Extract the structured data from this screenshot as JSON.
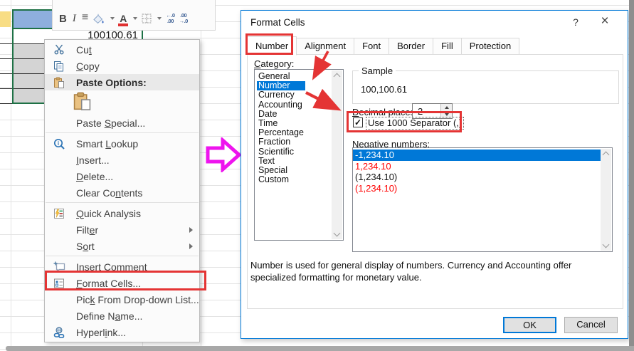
{
  "sheet": {
    "active_cell_value": "100100.61"
  },
  "toolbar": {
    "bold": "B",
    "italic": "I",
    "font_color": "A",
    "inc_top": "←.0",
    "inc_bot": ".00",
    "dec_top": ".00",
    "dec_bot": "→.0"
  },
  "context_menu": {
    "items": [
      {
        "name": "cut",
        "icon": "scissors-icon",
        "label": {
          "pre": "Cu",
          "key": "t",
          "post": ""
        }
      },
      {
        "name": "copy",
        "icon": "copy-icon",
        "label": {
          "pre": "",
          "key": "C",
          "post": "opy"
        }
      },
      {
        "name": "paste-options",
        "icon": "paste-icon",
        "bold": true,
        "highlighted": true,
        "label": {
          "pre": "Paste Options:",
          "key": "",
          "post": ""
        }
      },
      {
        "type": "paste-button",
        "name": "paste",
        "icon": "paste-large-icon"
      },
      {
        "name": "paste-special",
        "label": {
          "pre": "Paste ",
          "key": "S",
          "post": "pecial..."
        }
      },
      {
        "type": "separator"
      },
      {
        "name": "smart-lookup",
        "icon": "smart-lookup-icon",
        "label": {
          "pre": "Smart ",
          "key": "L",
          "post": "ookup"
        }
      },
      {
        "name": "insert",
        "label": {
          "pre": "",
          "key": "I",
          "post": "nsert..."
        }
      },
      {
        "name": "delete",
        "label": {
          "pre": "",
          "key": "D",
          "post": "elete..."
        }
      },
      {
        "name": "clear-contents",
        "label": {
          "pre": "Clear Co",
          "key": "n",
          "post": "tents"
        }
      },
      {
        "type": "separator"
      },
      {
        "name": "quick-analysis",
        "icon": "quick-analysis-icon",
        "label": {
          "pre": "",
          "key": "Q",
          "post": "uick Analysis"
        }
      },
      {
        "name": "filter",
        "submenu": true,
        "label": {
          "pre": "Filt",
          "key": "e",
          "post": "r"
        }
      },
      {
        "name": "sort",
        "submenu": true,
        "label": {
          "pre": "S",
          "key": "o",
          "post": "rt"
        }
      },
      {
        "type": "separator"
      },
      {
        "name": "insert-comment",
        "icon": "comment-icon",
        "label": {
          "pre": "Insert Co",
          "key": "m",
          "post": "ment"
        }
      },
      {
        "name": "format-cells",
        "icon": "format-cells-icon",
        "red_box": true,
        "label": {
          "pre": "",
          "key": "F",
          "post": "ormat Cells..."
        }
      },
      {
        "name": "pick-from-drop-down-list",
        "label": {
          "pre": "Pic",
          "key": "k",
          "post": " From Drop-down List..."
        }
      },
      {
        "name": "define-name",
        "label": {
          "pre": "Define N",
          "key": "a",
          "post": "me..."
        }
      },
      {
        "name": "hyperlink",
        "icon": "hyperlink-icon",
        "label": {
          "pre": "Hyperl",
          "key": "i",
          "post": "nk..."
        }
      }
    ]
  },
  "dialog": {
    "title": "Format Cells",
    "help_label": "?",
    "close_label": "×",
    "tabs": [
      {
        "label": "Number",
        "active": true,
        "red_box": true
      },
      {
        "label": "Alignment"
      },
      {
        "label": "Font"
      },
      {
        "label": "Border"
      },
      {
        "label": "Fill"
      },
      {
        "label": "Protection"
      }
    ],
    "category": {
      "label": {
        "pre": "",
        "key": "C",
        "post": "ategory:"
      },
      "items": [
        "General",
        "Number",
        "Currency",
        "Accounting",
        "Date",
        "Time",
        "Percentage",
        "Fraction",
        "Scientific",
        "Text",
        "Special",
        "Custom"
      ],
      "selected": "Number"
    },
    "sample": {
      "legend": "Sample",
      "value": "100,100.61"
    },
    "decimal": {
      "label": {
        "pre": "",
        "key": "D",
        "post": "ecimal places:"
      },
      "value": "2"
    },
    "use_separator": {
      "checked": true,
      "check_glyph": "✓",
      "red_box": true,
      "label": {
        "pre": "",
        "key": "U",
        "post": "se 1000 Separator (,)"
      }
    },
    "negative": {
      "label": {
        "pre": "",
        "key": "N",
        "post": "egative numbers:"
      },
      "items": [
        {
          "text": "-1,234.10",
          "selected": true
        },
        {
          "text": "1,234.10",
          "color": "red"
        },
        {
          "text": "(1,234.10)"
        },
        {
          "text": "(1,234.10)",
          "color": "red"
        }
      ]
    },
    "description": "Number is used for general display of numbers.  Currency and Accounting offer specialized formatting for monetary value.",
    "ok_label": "OK",
    "cancel_label": "Cancel"
  },
  "colors": {
    "accent": "#0078d7",
    "annotation_red": "#e43434",
    "annotation_magenta": "#ee14ee",
    "excel_green": "#1e7145",
    "negative_red": "#ff0000",
    "toolbar_font_red": "#e03232"
  }
}
